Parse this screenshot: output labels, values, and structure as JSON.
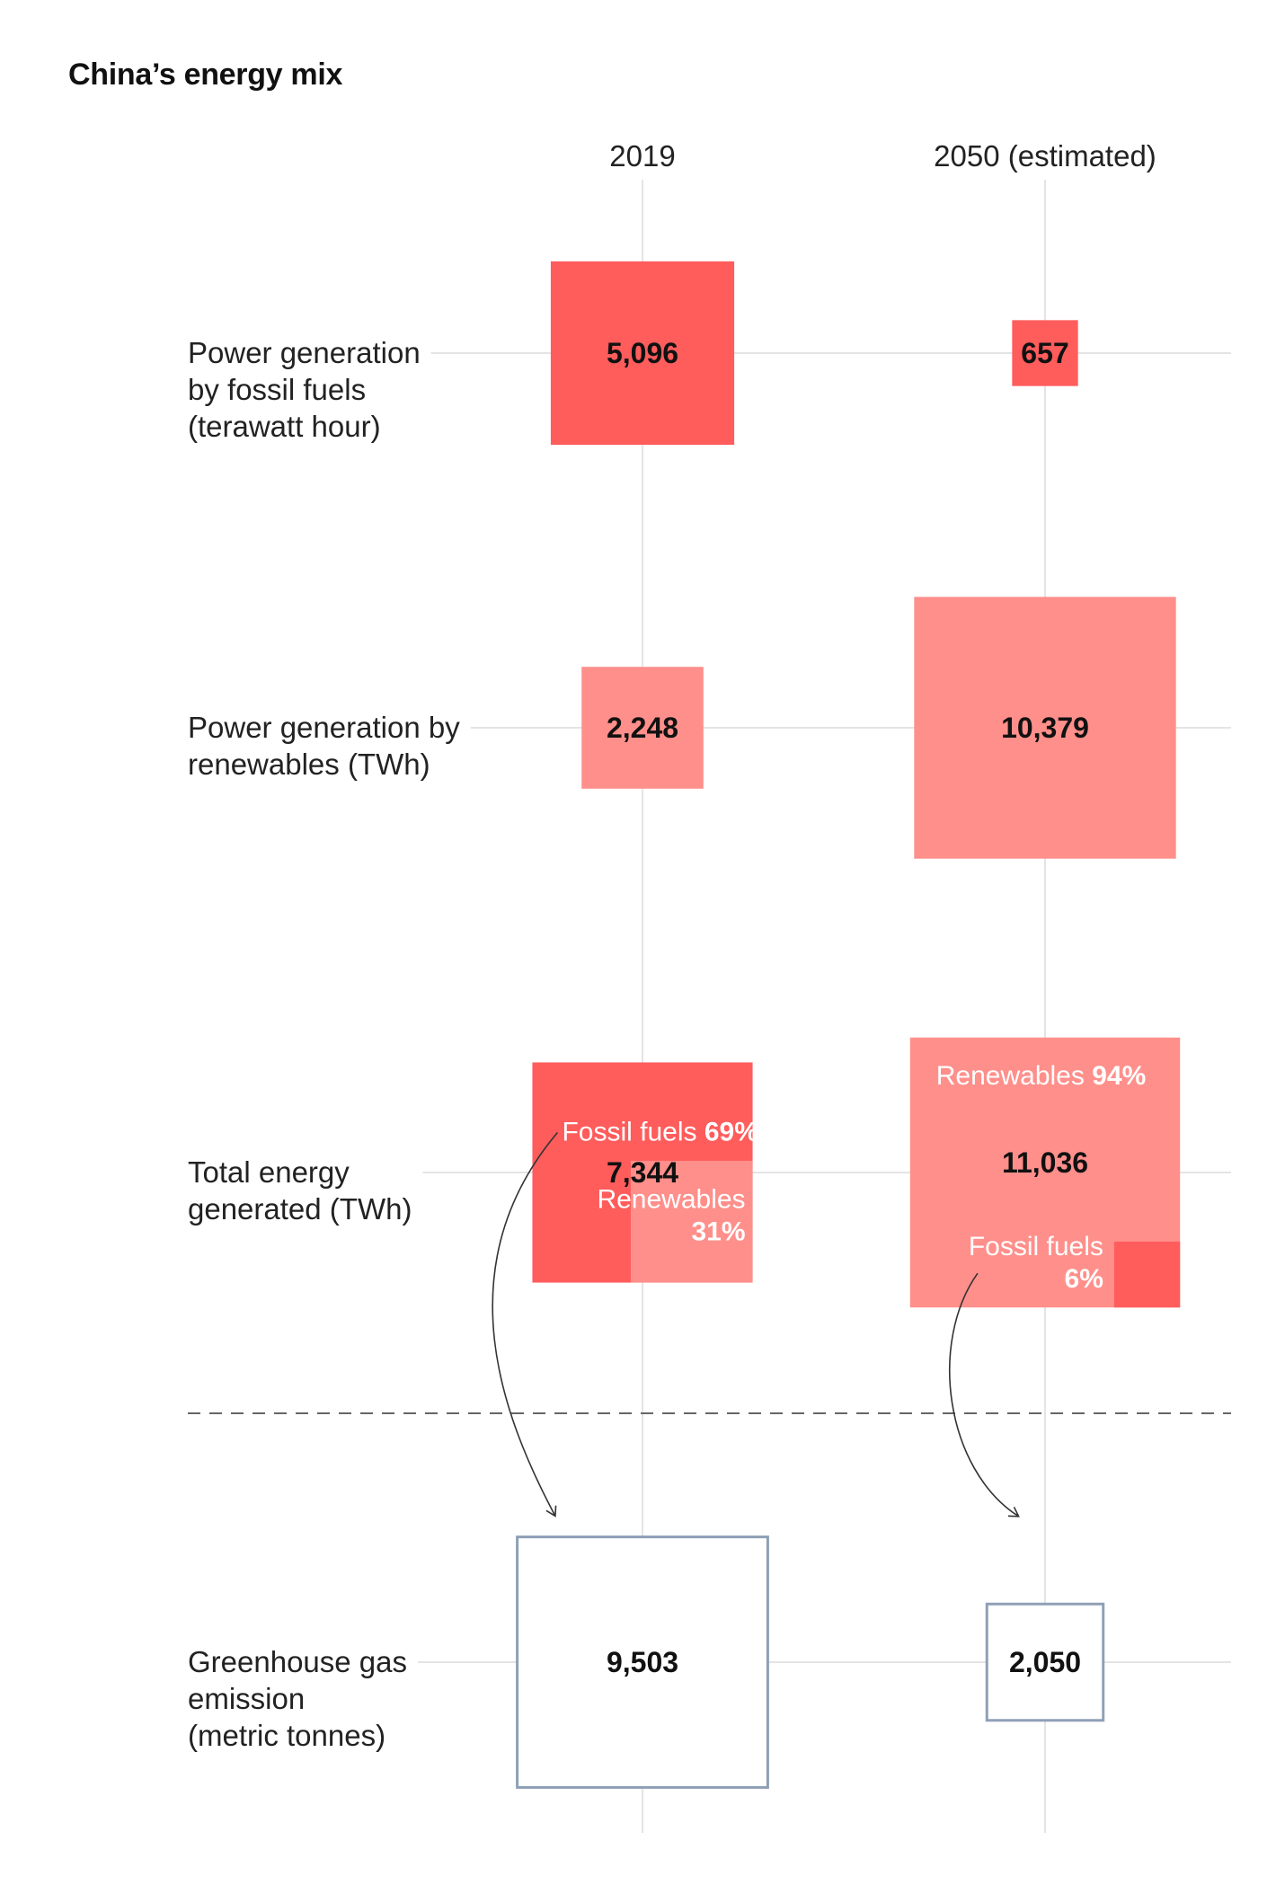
{
  "title": "China’s energy mix",
  "colors": {
    "fossil": "#ff5c5c",
    "renewables": "#ff8f8b",
    "emission_stroke": "#8ea0b6",
    "grid": "#e4e4e4",
    "separator": "#666666"
  },
  "chart_data": {
    "type": "proportional-area squares",
    "columns": [
      "2019",
      "2050 (estimated)"
    ],
    "rows": [
      {
        "label_lines": [
          "Power generation",
          "by fossil fuels",
          "(terawatt hour)"
        ],
        "values": [
          5096,
          657
        ],
        "value_labels": [
          "5,096",
          "657"
        ],
        "kind": "fossil"
      },
      {
        "label_lines": [
          "Power generation by",
          "renewables (TWh)"
        ],
        "values": [
          2248,
          10379
        ],
        "value_labels": [
          "2,248",
          "10,379"
        ],
        "kind": "renewables"
      },
      {
        "label_lines": [
          "Total energy",
          "generated (TWh)"
        ],
        "values": [
          7344,
          11036
        ],
        "value_labels": [
          "7,344",
          "11,036"
        ],
        "kind": "total",
        "shares": [
          {
            "fossil_label": "Fossil fuels",
            "fossil_pct": "69%",
            "renewables_label": "Renewables",
            "renewables_pct": "31%"
          },
          {
            "fossil_label": "Fossil fuels",
            "fossil_pct": "6%",
            "renewables_label": "Renewables",
            "renewables_pct": "94%"
          }
        ]
      },
      {
        "label_lines": [
          "Greenhouse gas",
          "emission",
          "(metric tonnes)"
        ],
        "values": [
          9503,
          2050
        ],
        "value_labels": [
          "9,503",
          "2,050"
        ],
        "kind": "emission"
      }
    ]
  }
}
